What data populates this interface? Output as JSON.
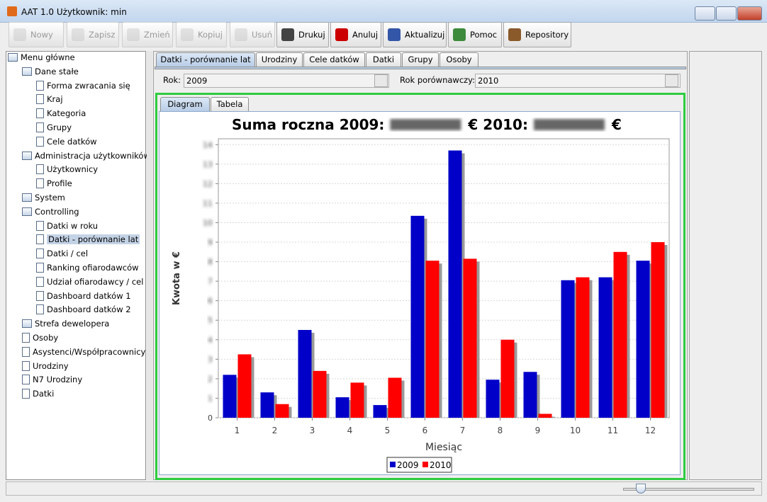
{
  "window": {
    "title": "AAT 1.0  Użytkownik: min"
  },
  "toolbar": [
    {
      "label": "Nowy",
      "enabled": false
    },
    {
      "label": "Zapisz",
      "enabled": false
    },
    {
      "label": "Zmień",
      "enabled": false
    },
    {
      "label": "Kopiuj",
      "enabled": false
    },
    {
      "label": "Usuń",
      "enabled": false
    },
    {
      "label": "Drukuj",
      "enabled": true
    },
    {
      "label": "Anuluj",
      "enabled": true
    },
    {
      "label": "Aktualizuj",
      "enabled": true
    },
    {
      "label": "Pomoc",
      "enabled": true
    },
    {
      "label": "Repository",
      "enabled": true
    }
  ],
  "tree": [
    {
      "label": "Menu główne",
      "level": 0,
      "folder": true
    },
    {
      "label": "Dane stałe",
      "level": 1,
      "folder": true
    },
    {
      "label": "Forma zwracania się",
      "level": 2,
      "folder": false
    },
    {
      "label": "Kraj",
      "level": 2,
      "folder": false
    },
    {
      "label": "Kategoria",
      "level": 2,
      "folder": false
    },
    {
      "label": "Grupy",
      "level": 2,
      "folder": false
    },
    {
      "label": "Cele datków",
      "level": 2,
      "folder": false
    },
    {
      "label": "Administracja użytkowników",
      "level": 1,
      "folder": true
    },
    {
      "label": "Użytkownicy",
      "level": 2,
      "folder": false
    },
    {
      "label": "Profile",
      "level": 2,
      "folder": false
    },
    {
      "label": "System",
      "level": 1,
      "folder": true
    },
    {
      "label": "Controlling",
      "level": 1,
      "folder": true
    },
    {
      "label": "Datki w roku",
      "level": 2,
      "folder": false
    },
    {
      "label": "Datki - porównanie lat",
      "level": 2,
      "folder": false,
      "selected": true
    },
    {
      "label": "Datki / cel",
      "level": 2,
      "folder": false
    },
    {
      "label": "Ranking ofiarodawców",
      "level": 2,
      "folder": false
    },
    {
      "label": "Udział ofiarodawcy / cel",
      "level": 2,
      "folder": false
    },
    {
      "label": "Dashboard datków 1",
      "level": 2,
      "folder": false
    },
    {
      "label": "Dashboard datków 2",
      "level": 2,
      "folder": false
    },
    {
      "label": "Strefa dewelopera",
      "level": 1,
      "folder": true
    },
    {
      "label": "Osoby",
      "level": 1,
      "folder": false
    },
    {
      "label": "Asystenci/Współpracownicy",
      "level": 1,
      "folder": false
    },
    {
      "label": "Urodziny",
      "level": 1,
      "folder": false
    },
    {
      "label": "N7 Urodziny",
      "level": 1,
      "folder": false
    },
    {
      "label": "Datki",
      "level": 1,
      "folder": false
    }
  ],
  "tabs": [
    "Datki - porównanie lat",
    "Urodziny",
    "Cele datków",
    "Datki",
    "Grupy",
    "Osoby"
  ],
  "filters": {
    "rok_label": "Rok:",
    "rok": "2009",
    "porownawczy_label": "Rok porównawczy:",
    "porownawczy": "2010"
  },
  "subtabs": [
    "Diagram",
    "Tabela"
  ],
  "chart_data": {
    "type": "bar",
    "title_parts": [
      "Suma roczna  2009:",
      "€  2010:",
      "€"
    ],
    "x_label": "Miesiąc",
    "y_label": "Kwota w €",
    "categories": [
      "1",
      "2",
      "3",
      "4",
      "5",
      "6",
      "7",
      "8",
      "9",
      "10",
      "11",
      "12"
    ],
    "series": [
      {
        "name": "2009",
        "color": "#0000c8",
        "values": [
          2.2,
          1.3,
          4.5,
          1.05,
          0.65,
          10.35,
          13.7,
          1.95,
          2.35,
          7.05,
          7.2,
          8.05
        ]
      },
      {
        "name": "2010",
        "color": "#ff0000",
        "values": [
          3.25,
          0.7,
          2.4,
          1.8,
          2.05,
          8.05,
          8.15,
          4.0,
          0.2,
          7.2,
          8.5,
          9.0
        ]
      }
    ],
    "ylim": [
      0,
      14.3
    ],
    "yticks": [
      0,
      1,
      2,
      3,
      4,
      5,
      6,
      7,
      8,
      9,
      10,
      11,
      12,
      13,
      14
    ],
    "grid": true,
    "legend": "bottom"
  }
}
